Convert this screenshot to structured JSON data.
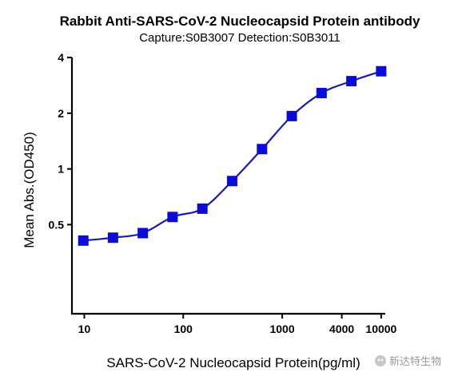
{
  "chart_data": {
    "type": "line",
    "title": "Rabbit Anti-SARS-CoV-2 Nucleocapsid Protein antibody",
    "subtitle": "Capture:S0B3007 Detection:S0B3011",
    "xlabel": "SARS-CoV-2 Nucleocapsid Protein(pg/ml)",
    "ylabel": "Mean Abs.(OD450)",
    "x_scale": "log",
    "y_scale": "log",
    "xlim": [
      7.5,
      11000
    ],
    "ylim": [
      0.165,
      4
    ],
    "x_ticks": [
      {
        "value": 10,
        "label": "10"
      },
      {
        "value": 100,
        "label": "100"
      },
      {
        "value": 1000,
        "label": "1000"
      },
      {
        "value": 4000,
        "label": "4000"
      },
      {
        "value": 10000,
        "label": "10000"
      }
    ],
    "y_ticks": [
      {
        "value": 0.5,
        "label": "0.5"
      },
      {
        "value": 1,
        "label": "1"
      },
      {
        "value": 2,
        "label": "2"
      },
      {
        "value": 4,
        "label": "4"
      }
    ],
    "grid": false,
    "series": [
      {
        "color": "#0b0bd9",
        "line_color": "#1a1aa8",
        "marker": "square",
        "x": [
          9.77,
          19.5,
          39,
          78,
          156,
          312,
          625,
          1250,
          2500,
          5000,
          10000
        ],
        "y": [
          0.41,
          0.425,
          0.45,
          0.55,
          0.61,
          0.86,
          1.28,
          1.93,
          2.57,
          2.98,
          3.37
        ]
      }
    ]
  },
  "watermark": {
    "text": "新达特生物",
    "icon": "wechat-icon"
  }
}
